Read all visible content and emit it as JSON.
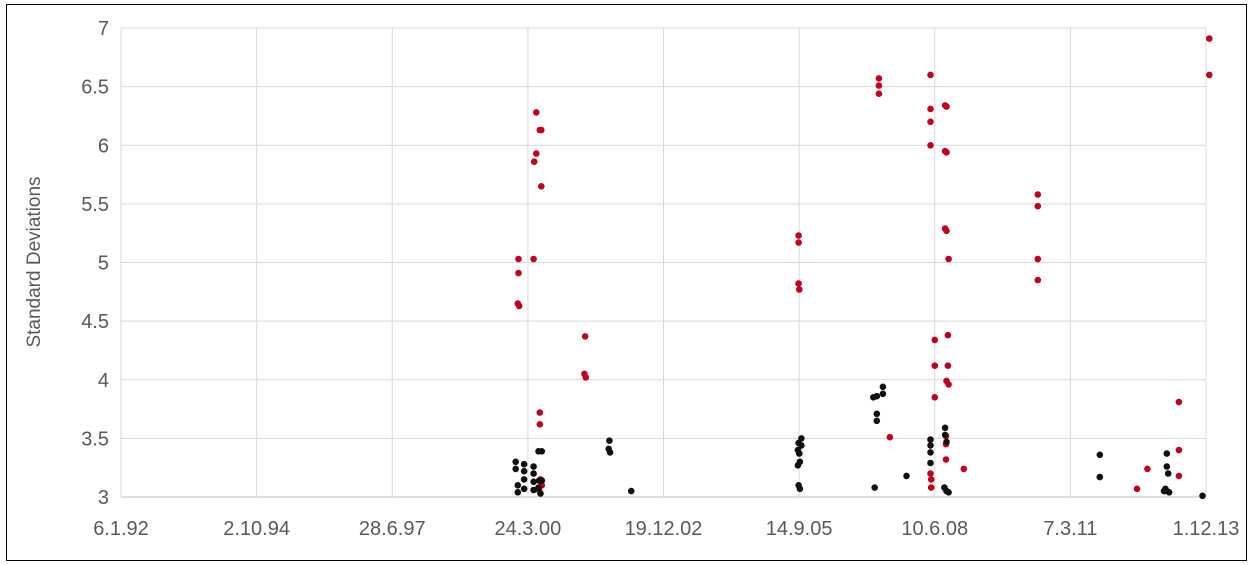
{
  "chart_data": {
    "type": "scatter",
    "title": "",
    "xlabel": "",
    "ylabel": "Standard Deviations",
    "x_ticks": [
      "6.1.92",
      "2.10.94",
      "28.6.97",
      "24.3.00",
      "19.12.02",
      "14.9.05",
      "10.6.08",
      "7.3.11",
      "1.12.13"
    ],
    "xlim": [
      "1992-01-06",
      "2013-12-01"
    ],
    "ylim": [
      3,
      7
    ],
    "y_ticks": [
      "3",
      "3.5",
      "4",
      "4.5",
      "5",
      "5.5",
      "6",
      "6.5",
      "7"
    ],
    "grid": true,
    "legend": "none",
    "colors": {
      "red": "#c00020",
      "black": "#111111",
      "grid": "#d9d9d9",
      "axis": "#bfbfbf"
    },
    "series": [
      {
        "color": "#c00020",
        "points": [
          {
            "x": "2000-01-15",
            "y": 5.03
          },
          {
            "x": "2000-01-15",
            "y": 4.91
          },
          {
            "x": "2000-01-10",
            "y": 4.65
          },
          {
            "x": "2000-01-20",
            "y": 4.63
          },
          {
            "x": "2000-05-25",
            "y": 6.28
          },
          {
            "x": "2000-05-25",
            "y": 5.93
          },
          {
            "x": "2000-05-10",
            "y": 5.86
          },
          {
            "x": "2000-06-20",
            "y": 6.13
          },
          {
            "x": "2000-07-01",
            "y": 6.13
          },
          {
            "x": "2000-07-01",
            "y": 5.65
          },
          {
            "x": "2000-05-05",
            "y": 5.03
          },
          {
            "x": "2000-06-20",
            "y": 3.72
          },
          {
            "x": "2000-06-20",
            "y": 3.62
          },
          {
            "x": "2000-06-25",
            "y": 3.15
          },
          {
            "x": "2000-07-05",
            "y": 3.1
          },
          {
            "x": "2000-06-15",
            "y": 3.06
          },
          {
            "x": "2001-05-20",
            "y": 4.37
          },
          {
            "x": "2001-05-15",
            "y": 4.05
          },
          {
            "x": "2001-05-25",
            "y": 4.02
          },
          {
            "x": "2005-09-10",
            "y": 5.23
          },
          {
            "x": "2005-09-10",
            "y": 5.17
          },
          {
            "x": "2005-09-10",
            "y": 4.82
          },
          {
            "x": "2005-09-15",
            "y": 4.77
          },
          {
            "x": "2007-04-25",
            "y": 6.57
          },
          {
            "x": "2007-04-25",
            "y": 6.51
          },
          {
            "x": "2007-04-25",
            "y": 6.44
          },
          {
            "x": "2007-07-15",
            "y": 3.51
          },
          {
            "x": "2008-05-10",
            "y": 6.6
          },
          {
            "x": "2008-05-10",
            "y": 6.31
          },
          {
            "x": "2008-05-10",
            "y": 6.2
          },
          {
            "x": "2008-05-10",
            "y": 6.0
          },
          {
            "x": "2008-08-25",
            "y": 6.34
          },
          {
            "x": "2008-09-05",
            "y": 6.33
          },
          {
            "x": "2008-08-25",
            "y": 5.95
          },
          {
            "x": "2008-09-05",
            "y": 5.94
          },
          {
            "x": "2008-08-25",
            "y": 5.29
          },
          {
            "x": "2008-09-05",
            "y": 5.27
          },
          {
            "x": "2008-09-20",
            "y": 5.03
          },
          {
            "x": "2008-06-10",
            "y": 4.34
          },
          {
            "x": "2008-06-10",
            "y": 4.12
          },
          {
            "x": "2008-06-10",
            "y": 3.85
          },
          {
            "x": "2008-09-15",
            "y": 4.38
          },
          {
            "x": "2008-09-15",
            "y": 4.12
          },
          {
            "x": "2008-09-05",
            "y": 3.99
          },
          {
            "x": "2008-09-20",
            "y": 3.96
          },
          {
            "x": "2008-09-01",
            "y": 3.52
          },
          {
            "x": "2008-09-01",
            "y": 3.45
          },
          {
            "x": "2008-09-01",
            "y": 3.32
          },
          {
            "x": "2008-05-10",
            "y": 3.2
          },
          {
            "x": "2008-05-15",
            "y": 3.15
          },
          {
            "x": "2008-05-15",
            "y": 3.08
          },
          {
            "x": "2009-01-10",
            "y": 3.24
          },
          {
            "x": "2010-07-10",
            "y": 5.58
          },
          {
            "x": "2010-07-10",
            "y": 5.48
          },
          {
            "x": "2010-07-10",
            "y": 5.03
          },
          {
            "x": "2010-07-10",
            "y": 4.85
          },
          {
            "x": "2012-07-10",
            "y": 3.07
          },
          {
            "x": "2012-09-25",
            "y": 3.24
          },
          {
            "x": "2013-02-15",
            "y": 3.05
          },
          {
            "x": "2013-05-15",
            "y": 3.81
          },
          {
            "x": "2013-05-15",
            "y": 3.4
          },
          {
            "x": "2013-05-15",
            "y": 3.18
          },
          {
            "x": "2013-12-25",
            "y": 6.91
          },
          {
            "x": "2013-12-25",
            "y": 6.6
          }
        ]
      },
      {
        "color": "#111111",
        "points": [
          {
            "x": "1999-12-25",
            "y": 3.3
          },
          {
            "x": "1999-12-25",
            "y": 3.24
          },
          {
            "x": "2000-01-10",
            "y": 3.1
          },
          {
            "x": "2000-01-10",
            "y": 3.04
          },
          {
            "x": "2000-02-25",
            "y": 3.28
          },
          {
            "x": "2000-02-25",
            "y": 3.22
          },
          {
            "x": "2000-02-25",
            "y": 3.15
          },
          {
            "x": "2000-02-25",
            "y": 3.07
          },
          {
            "x": "2000-05-05",
            "y": 3.26
          },
          {
            "x": "2000-05-05",
            "y": 3.2
          },
          {
            "x": "2000-05-05",
            "y": 3.13
          },
          {
            "x": "2000-05-05",
            "y": 3.06
          },
          {
            "x": "2000-06-10",
            "y": 3.39
          },
          {
            "x": "2000-07-05",
            "y": 3.39
          },
          {
            "x": "2000-06-15",
            "y": 3.14
          },
          {
            "x": "2000-06-25",
            "y": 3.03
          },
          {
            "x": "2000-06-10",
            "y": 3.08
          },
          {
            "x": "2000-07-05",
            "y": 3.14
          },
          {
            "x": "2001-11-15",
            "y": 3.48
          },
          {
            "x": "2001-11-10",
            "y": 3.41
          },
          {
            "x": "2001-11-20",
            "y": 3.38
          },
          {
            "x": "2002-04-25",
            "y": 3.05
          },
          {
            "x": "2005-09-10",
            "y": 3.46
          },
          {
            "x": "2005-09-05",
            "y": 3.4
          },
          {
            "x": "2005-09-15",
            "y": 3.37
          },
          {
            "x": "2005-09-20",
            "y": 3.3
          },
          {
            "x": "2005-10-01",
            "y": 3.5
          },
          {
            "x": "2005-10-01",
            "y": 3.44
          },
          {
            "x": "2005-09-05",
            "y": 3.27
          },
          {
            "x": "2005-09-10",
            "y": 3.1
          },
          {
            "x": "2005-09-20",
            "y": 3.07
          },
          {
            "x": "2007-03-15",
            "y": 3.85
          },
          {
            "x": "2007-04-10",
            "y": 3.86
          },
          {
            "x": "2007-04-10",
            "y": 3.71
          },
          {
            "x": "2007-04-10",
            "y": 3.65
          },
          {
            "x": "2007-05-25",
            "y": 3.94
          },
          {
            "x": "2007-05-25",
            "y": 3.88
          },
          {
            "x": "2007-03-25",
            "y": 3.08
          },
          {
            "x": "2007-11-15",
            "y": 3.18
          },
          {
            "x": "2008-05-10",
            "y": 3.49
          },
          {
            "x": "2008-05-10",
            "y": 3.44
          },
          {
            "x": "2008-05-10",
            "y": 3.38
          },
          {
            "x": "2008-05-10",
            "y": 3.29
          },
          {
            "x": "2008-08-25",
            "y": 3.59
          },
          {
            "x": "2008-08-25",
            "y": 3.53
          },
          {
            "x": "2008-09-05",
            "y": 3.47
          },
          {
            "x": "2008-08-20",
            "y": 3.08
          },
          {
            "x": "2008-09-05",
            "y": 3.05
          },
          {
            "x": "2008-09-20",
            "y": 3.04
          },
          {
            "x": "2011-10-10",
            "y": 3.36
          },
          {
            "x": "2011-10-10",
            "y": 3.17
          },
          {
            "x": "2013-02-15",
            "y": 3.37
          },
          {
            "x": "2013-02-15",
            "y": 3.26
          },
          {
            "x": "2013-02-25",
            "y": 3.2
          },
          {
            "x": "2013-02-05",
            "y": 3.07
          },
          {
            "x": "2013-01-25",
            "y": 3.05
          },
          {
            "x": "2013-03-05",
            "y": 3.04
          },
          {
            "x": "2013-11-05",
            "y": 3.01
          }
        ]
      }
    ]
  }
}
